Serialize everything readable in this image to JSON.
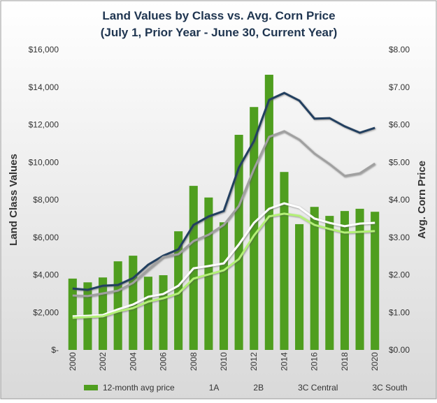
{
  "chart_data": {
    "type": "bar_line_combo",
    "title": [
      "Land Values by Class vs. Avg. Corn Price",
      "(July 1, Prior Year - June 30, Current Year)"
    ],
    "y_label": "Land Class Values",
    "y2_label": "Avg. Corn Price",
    "categories": [
      "2000",
      null,
      "2002",
      null,
      "2004",
      null,
      "2006",
      null,
      "2008",
      null,
      "2010",
      null,
      "2012",
      null,
      "2014",
      null,
      "2016",
      null,
      "2018",
      null,
      "2020"
    ],
    "ylim": [
      0,
      16000
    ],
    "yticks": [
      {
        "value": 0,
        "label": "$-"
      },
      {
        "value": 2000,
        "label": "$2,000"
      },
      {
        "value": 4000,
        "label": "$4,000"
      },
      {
        "value": 6000,
        "label": "$6,000"
      },
      {
        "value": 8000,
        "label": "$8,000"
      },
      {
        "value": 10000,
        "label": "$10,000"
      },
      {
        "value": 12000,
        "label": "$12,000"
      },
      {
        "value": 14000,
        "label": "$14,000"
      },
      {
        "value": 16000,
        "label": "$16,000"
      }
    ],
    "y2lim": [
      0,
      8
    ],
    "y2ticks": [
      {
        "value": 0,
        "label": "$0.00"
      },
      {
        "value": 1,
        "label": "$1.00"
      },
      {
        "value": 2,
        "label": "$2.00"
      },
      {
        "value": 3,
        "label": "$3.00"
      },
      {
        "value": 4,
        "label": "$4.00"
      },
      {
        "value": 5,
        "label": "$5.00"
      },
      {
        "value": 6,
        "label": "$6.00"
      },
      {
        "value": 7,
        "label": "$7.00"
      },
      {
        "value": 8,
        "label": "$8.00"
      }
    ],
    "series": [
      {
        "name": "12-month avg price",
        "kind": "bar",
        "axis": "y2",
        "color": "#4f9e1f",
        "values": [
          1.9,
          1.8,
          1.93,
          2.36,
          2.51,
          1.95,
          1.99,
          3.16,
          4.37,
          4.06,
          3.4,
          5.73,
          6.47,
          7.33,
          4.74,
          3.35,
          3.81,
          3.57,
          3.7,
          3.76,
          3.68
        ]
      },
      {
        "name": "1A",
        "kind": "line",
        "color": "#243f60",
        "values": [
          3270,
          3200,
          3420,
          3460,
          3830,
          4540,
          5020,
          5360,
          6660,
          7110,
          7400,
          9710,
          11130,
          13320,
          13690,
          13280,
          12320,
          12350,
          11910,
          11570,
          11830
        ]
      },
      {
        "name": "2B",
        "kind": "line",
        "color": "#a0a0a0",
        "values": [
          2900,
          2870,
          3010,
          3160,
          3570,
          4280,
          4950,
          5100,
          5800,
          6140,
          6660,
          7670,
          9640,
          11350,
          11650,
          11200,
          10460,
          9900,
          9270,
          9410,
          9930
        ]
      },
      {
        "name": "3C Central",
        "kind": "line",
        "color": "#ffffff",
        "values": [
          1790,
          1820,
          1860,
          2160,
          2420,
          2830,
          2980,
          3420,
          4350,
          4470,
          4610,
          5620,
          6770,
          7520,
          7810,
          7590,
          7000,
          6770,
          6590,
          6730,
          6770
        ]
      },
      {
        "name": "3C South",
        "kind": "line",
        "color": "#b4f078",
        "values": [
          1710,
          1750,
          1790,
          2050,
          2230,
          2570,
          2750,
          3010,
          3800,
          4020,
          4240,
          4840,
          6100,
          7110,
          7260,
          7140,
          6660,
          6440,
          6250,
          6290,
          6330
        ]
      }
    ]
  }
}
